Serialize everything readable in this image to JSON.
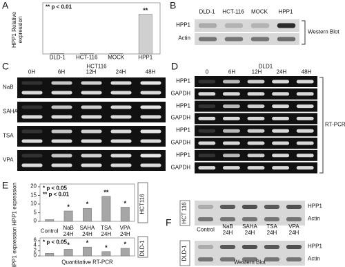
{
  "panel_labels": [
    "A",
    "B",
    "C",
    "D",
    "E",
    "F"
  ],
  "chart_data": [
    {
      "type": "bar",
      "ylabel": "HPP1 Relative expression",
      "annotations": [
        "** p < 0.01"
      ],
      "categories": [
        "DLD-1",
        "HCT-116",
        "MOCK",
        "HPP1"
      ],
      "values": [
        1,
        1,
        1,
        82
      ],
      "significance": [
        null,
        null,
        null,
        "**"
      ],
      "ylim": [
        0,
        100
      ],
      "color": "#d0d0d0"
    },
    {
      "type": "bar",
      "ylabel": "HPP1 expression",
      "annotations": [
        "* p < 0.05",
        "** p < 0.01"
      ],
      "side_label": "HCT116",
      "categories": [
        "Control",
        "NaB 24H",
        "SAHA 24H",
        "TSA 24H",
        "VPA 24H"
      ],
      "values": [
        1,
        6,
        7.5,
        14.5,
        8.2
      ],
      "significance": [
        null,
        "*",
        "*",
        "**",
        "*"
      ],
      "ylim": [
        0,
        20
      ],
      "yticks": [
        0,
        5,
        10,
        15,
        20
      ],
      "color": "#a6a6a6"
    },
    {
      "type": "bar",
      "ylabel": "HPP1 expression",
      "annotations": [
        "* p < 0.05"
      ],
      "side_label": "DLD-1",
      "xlabel": "Quantitative RT-PCR",
      "categories": [
        null,
        null,
        null,
        null,
        null
      ],
      "values": [
        1,
        2.6,
        3.5,
        1.7,
        3.0
      ],
      "significance": [
        null,
        "*",
        "*",
        "*",
        "*"
      ],
      "ylim": [
        0,
        6
      ],
      "yticks": [
        0,
        2,
        4,
        6
      ],
      "color": "#a6a6a6"
    }
  ],
  "blot_b": {
    "lanes": [
      "DLD-1",
      "HCT-116",
      "MOCK",
      "HPP1"
    ],
    "rows": [
      "HPP1",
      "Actin"
    ],
    "method": "Western Blot"
  },
  "gel_c": {
    "title": "HCT116",
    "lanes": [
      "0H",
      "6H",
      "12H",
      "24H",
      "48H"
    ],
    "rows": [
      "NaB",
      "SAHA",
      "TSA",
      "VPA"
    ]
  },
  "gel_d": {
    "title": "DLD1",
    "lanes": [
      "0",
      "6H",
      "12H",
      "24H",
      "48H"
    ],
    "rows": [
      "HPP1",
      "GAPDH",
      "HPP1",
      "GAPDH",
      "HPP1",
      "GAPDH",
      "HPP1",
      "GAPDH"
    ],
    "method": "RT-PCR"
  },
  "blot_f": {
    "groups": [
      "HCT 116",
      "DLD-1"
    ],
    "rows": [
      "HPP1",
      "Actin"
    ],
    "lanes": [
      "Control",
      "NaB 24H",
      "SAHA 24H",
      "TSA 24H",
      "VPA 24H"
    ],
    "method": "Western Blot"
  }
}
